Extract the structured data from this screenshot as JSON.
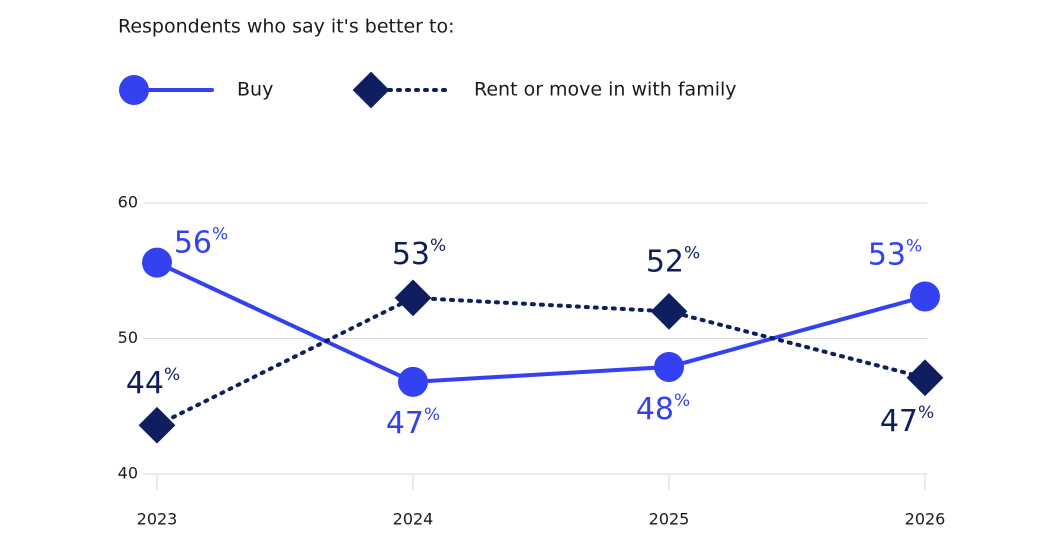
{
  "chart_data": {
    "type": "line",
    "title": "Respondents who say it's better to:",
    "categories": [
      "2023",
      "2024",
      "2025",
      "2026"
    ],
    "series": [
      {
        "name": "Buy",
        "color": "#3341f0",
        "marker": "circle",
        "dash": "solid",
        "values": [
          55.6,
          46.8,
          47.9,
          53.1
        ],
        "value_labels": [
          "56%",
          "47%",
          "48%",
          "53%"
        ]
      },
      {
        "name": "Rent or move in with family",
        "color": "#0f1e5e",
        "marker": "diamond",
        "dash": "dotted",
        "values": [
          43.6,
          53.0,
          52.0,
          47.1
        ],
        "value_labels": [
          "44%",
          "53%",
          "52%",
          "47%"
        ]
      }
    ],
    "ylim": [
      40,
      60
    ],
    "yticks": [
      40,
      50,
      60
    ],
    "grid": true
  }
}
